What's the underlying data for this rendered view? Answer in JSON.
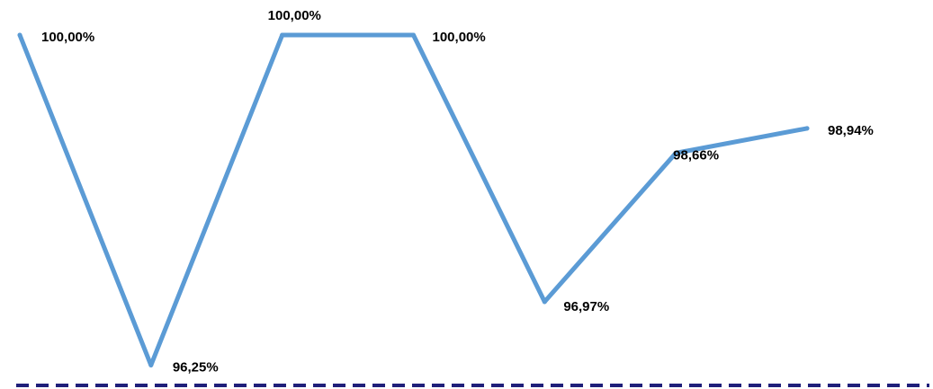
{
  "chart_data": {
    "type": "line",
    "x": [
      1,
      2,
      3,
      4,
      5,
      6,
      7
    ],
    "series": [
      {
        "values": [
          100.0,
          96.25,
          100.0,
          100.0,
          96.97,
          98.66,
          98.94
        ],
        "labels": [
          "100,00%",
          "96,25%",
          "100,00%",
          "100,00%",
          "96,97%",
          "98,66%",
          "98,94%"
        ]
      }
    ],
    "ylim": [
      96.0,
      100.0
    ],
    "reference_line": {
      "style": "dashed"
    },
    "grid": false,
    "legend": "none"
  },
  "colors": {
    "series_line": "#5B9BD5",
    "reference_line": "#1F1F7A",
    "label_text": "#000000"
  }
}
